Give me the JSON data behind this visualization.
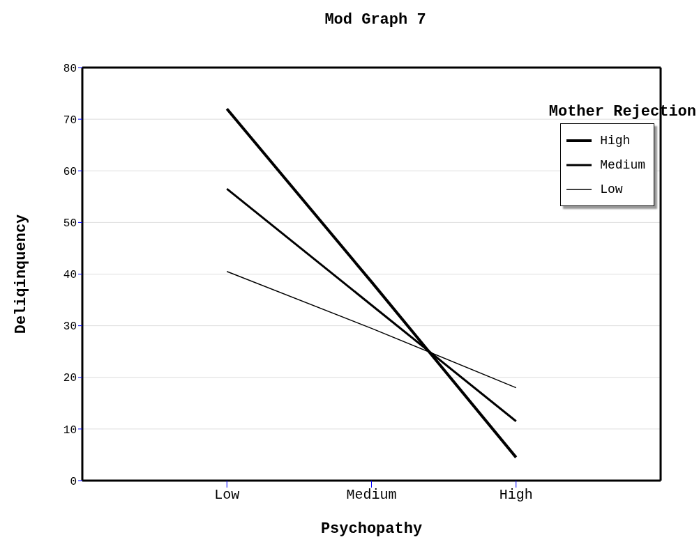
{
  "chart_data": {
    "type": "line",
    "title": "Mod Graph 7",
    "xlabel": "Psychopathy",
    "ylabel": "Deliqinquency",
    "legend_title": "Mother Rejection",
    "categories": [
      "Low",
      "Medium",
      "High"
    ],
    "series": [
      {
        "name": "High",
        "color": "#000000",
        "values": [
          72,
          38.5,
          4.5
        ]
      },
      {
        "name": "Medium",
        "color": "#000000",
        "values": [
          56.5,
          34,
          11.5
        ]
      },
      {
        "name": "Low",
        "color": "#000000",
        "values": [
          40.5,
          29.5,
          18
        ]
      }
    ],
    "ylim": [
      0,
      80
    ],
    "yticks": [
      0,
      10,
      20,
      30,
      40,
      50,
      60,
      70,
      80
    ],
    "grid": "y",
    "legend": "top right",
    "marker": "none",
    "line_style": "solid"
  }
}
